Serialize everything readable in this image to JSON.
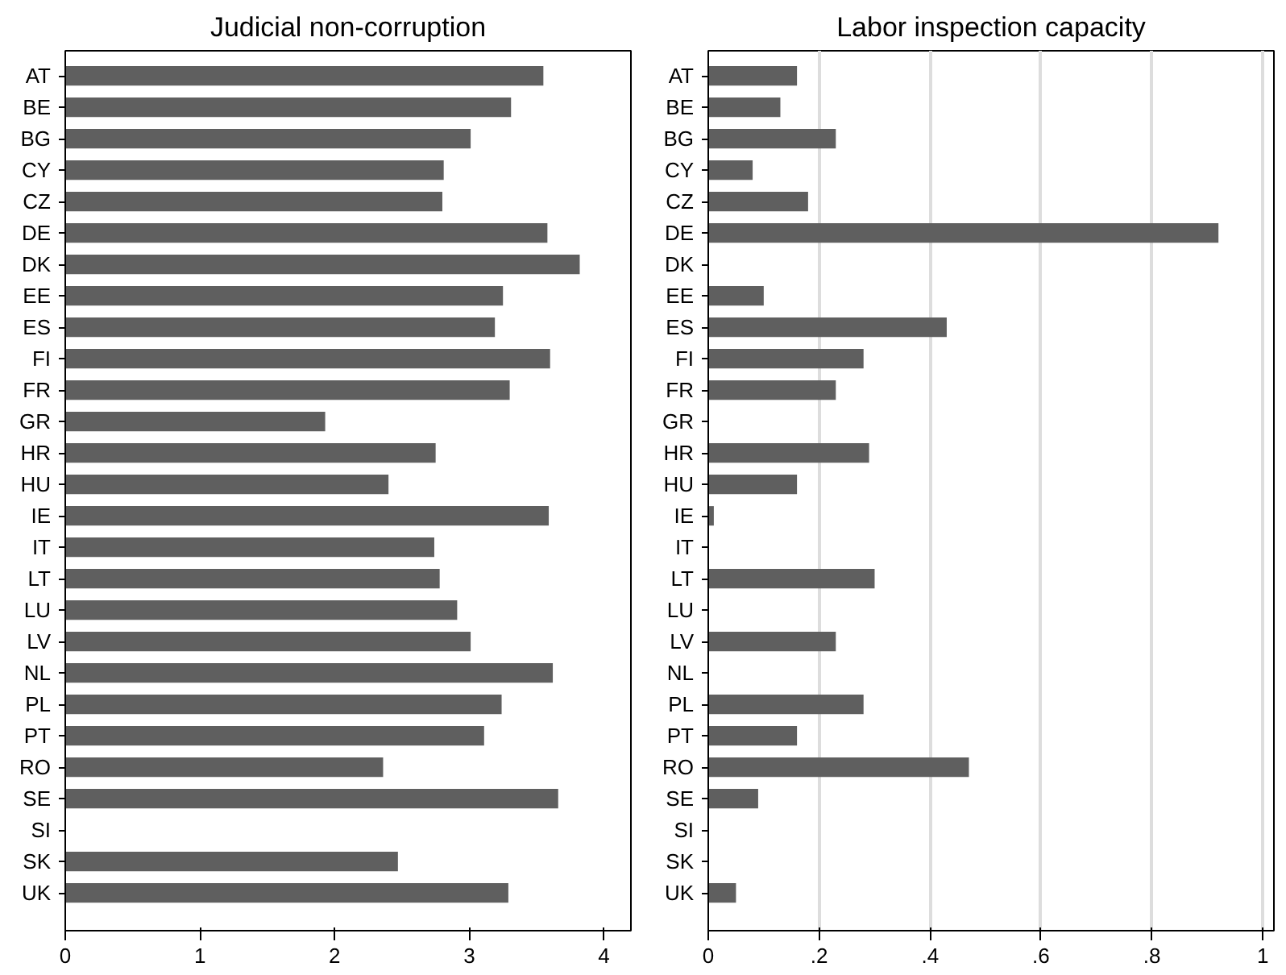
{
  "chart_data": [
    {
      "type": "bar",
      "orientation": "horizontal",
      "title": "Judicial non-corruption",
      "categories": [
        "AT",
        "BE",
        "BG",
        "CY",
        "CZ",
        "DE",
        "DK",
        "EE",
        "ES",
        "FI",
        "FR",
        "GR",
        "HR",
        "HU",
        "IE",
        "IT",
        "LT",
        "LU",
        "LV",
        "NL",
        "PL",
        "PT",
        "RO",
        "SE",
        "SI",
        "SK",
        "UK"
      ],
      "values": [
        3.55,
        3.31,
        3.01,
        2.81,
        2.8,
        3.58,
        3.82,
        3.25,
        3.19,
        3.6,
        3.3,
        1.93,
        2.75,
        2.4,
        3.59,
        2.74,
        2.78,
        2.91,
        3.01,
        3.62,
        3.24,
        3.11,
        2.36,
        3.66,
        null,
        2.47,
        3.29
      ],
      "color": "#5f5f5f",
      "xlim": [
        0,
        4.2
      ],
      "xticks": [
        0,
        1,
        2,
        3,
        4
      ],
      "grid": false
    },
    {
      "type": "bar",
      "orientation": "horizontal",
      "title": "Labor inspection capacity",
      "categories": [
        "AT",
        "BE",
        "BG",
        "CY",
        "CZ",
        "DE",
        "DK",
        "EE",
        "ES",
        "FI",
        "FR",
        "GR",
        "HR",
        "HU",
        "IE",
        "IT",
        "LT",
        "LU",
        "LV",
        "NL",
        "PL",
        "PT",
        "RO",
        "SE",
        "SI",
        "SK",
        "UK"
      ],
      "values": [
        0.16,
        0.13,
        0.23,
        0.08,
        0.18,
        0.92,
        null,
        0.1,
        0.43,
        0.28,
        0.23,
        null,
        0.29,
        0.16,
        0.01,
        null,
        0.3,
        null,
        0.23,
        null,
        0.28,
        0.16,
        0.47,
        0.09,
        null,
        null,
        0.05
      ],
      "color": "#5f5f5f",
      "xlim": [
        0,
        1.02
      ],
      "xticks": [
        0,
        {
          "value": 0.2,
          "label": ".2"
        },
        {
          "value": 0.4,
          "label": ".4"
        },
        {
          "value": 0.6,
          "label": ".6"
        },
        {
          "value": 0.8,
          "label": ".8"
        },
        1
      ],
      "grid": "x"
    }
  ]
}
